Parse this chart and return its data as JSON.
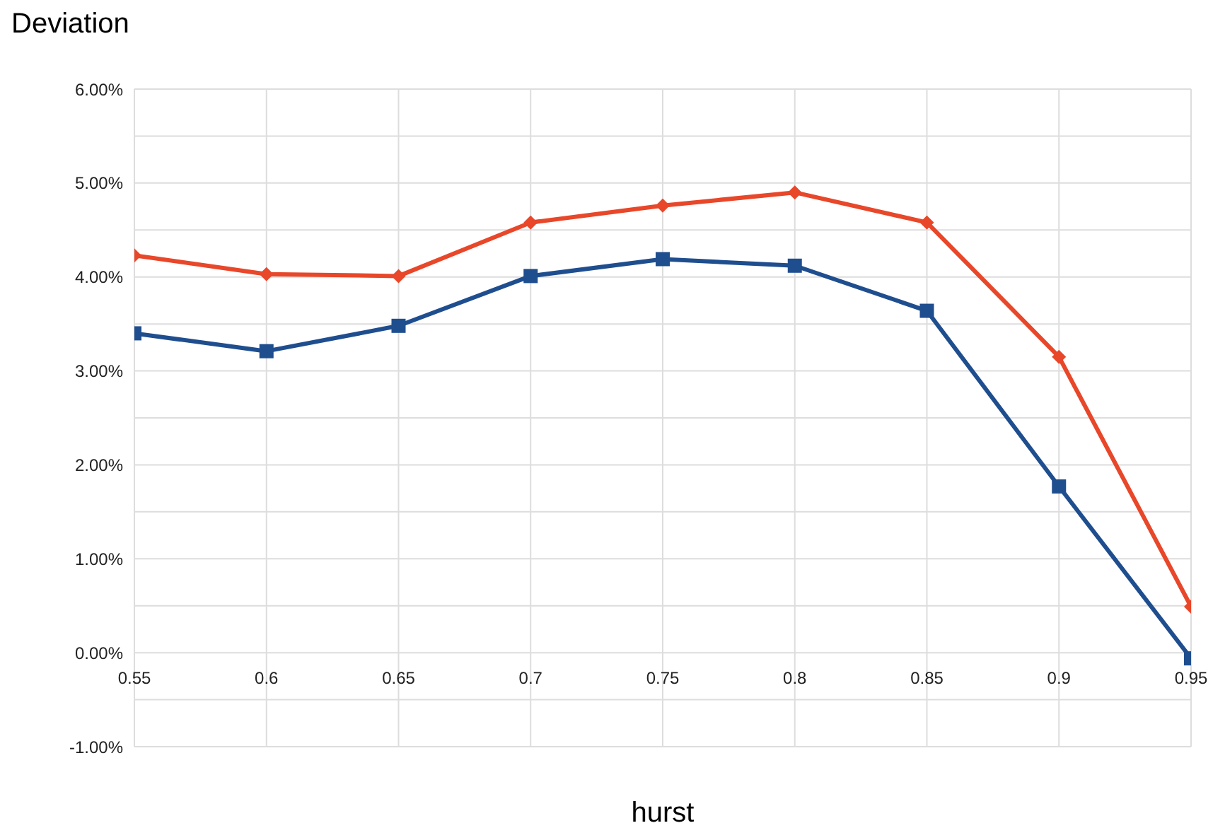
{
  "chart_data": {
    "type": "line",
    "xlabel": "hurst",
    "ylabel": "Deviation",
    "x": [
      0.55,
      0.6,
      0.65,
      0.7,
      0.75,
      0.8,
      0.85,
      0.9,
      0.95
    ],
    "series": [
      {
        "color": "#e8472a",
        "marker": "diamond",
        "values": [
          4.23,
          4.03,
          4.01,
          4.58,
          4.76,
          4.9,
          4.58,
          3.15,
          0.49
        ]
      },
      {
        "color": "#1f4e8f",
        "marker": "square",
        "values": [
          3.4,
          3.21,
          3.48,
          4.01,
          4.19,
          4.12,
          3.64,
          1.77,
          -0.06
        ]
      }
    ],
    "xlim": [
      0.55,
      0.95
    ],
    "xticks": [
      0.55,
      0.6,
      0.65,
      0.7,
      0.75,
      0.8,
      0.85,
      0.9,
      0.95
    ],
    "ylim": [
      -1,
      6
    ],
    "yticks": [
      {
        "value": -1,
        "label": "-1.00%"
      },
      {
        "value": -0.5,
        "label": null
      },
      {
        "value": 0,
        "label": "0.00%"
      },
      {
        "value": 0.5,
        "label": null
      },
      {
        "value": 1,
        "label": "1.00%"
      },
      {
        "value": 1.5,
        "label": null
      },
      {
        "value": 2,
        "label": "2.00%"
      },
      {
        "value": 2.5,
        "label": null
      },
      {
        "value": 3,
        "label": "3.00%"
      },
      {
        "value": 3.5,
        "label": null
      },
      {
        "value": 4,
        "label": "4.00%"
      },
      {
        "value": 4.5,
        "label": null
      },
      {
        "value": 5,
        "label": "5.00%"
      },
      {
        "value": 5.5,
        "label": null
      },
      {
        "value": 6,
        "label": "6.00%"
      }
    ],
    "grid": true,
    "legend": false,
    "line_style": "solid"
  }
}
